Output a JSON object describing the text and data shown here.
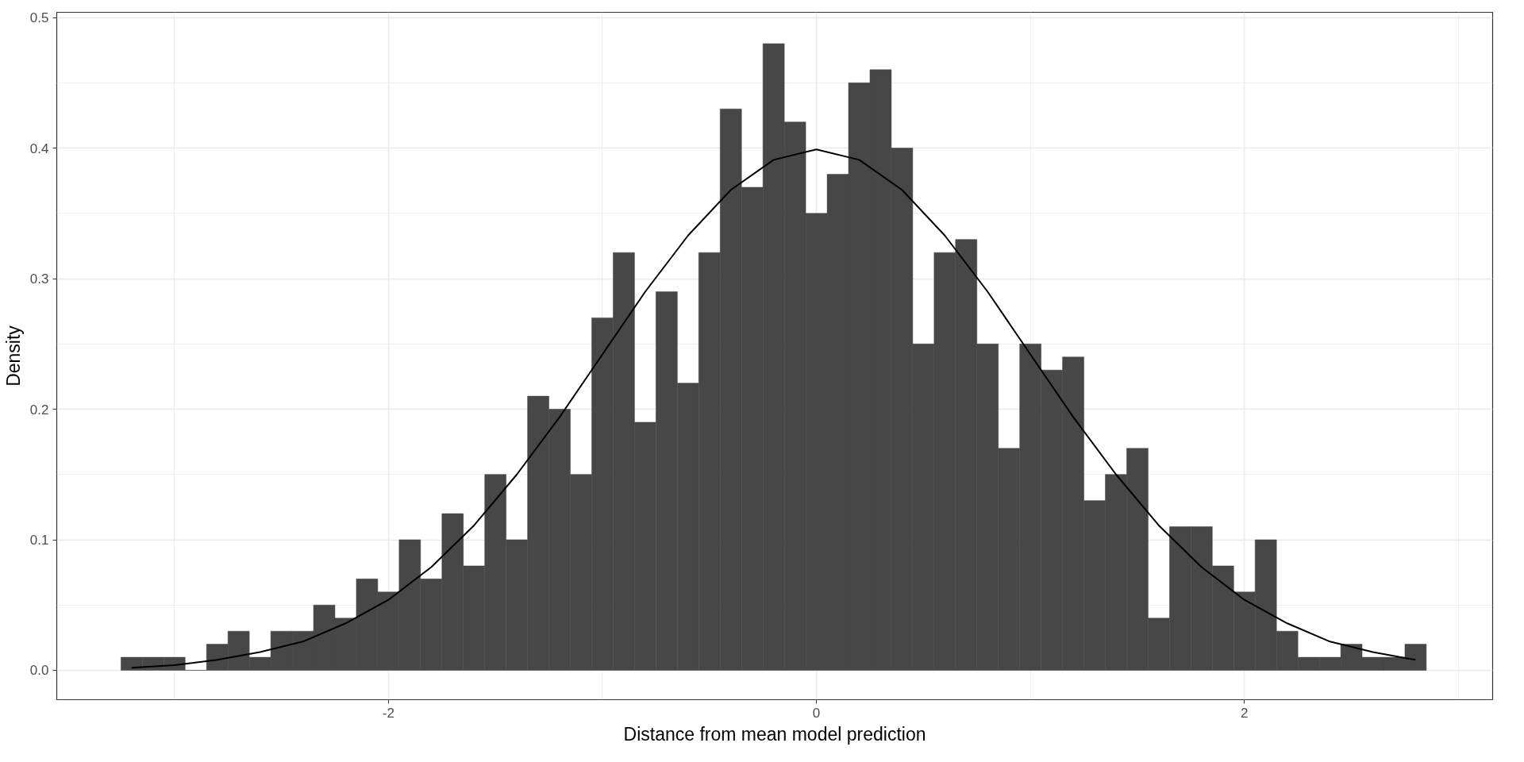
{
  "chart_data": {
    "type": "histogram",
    "xlabel": "Distance from mean model prediction",
    "ylabel": "Density",
    "color": "#474747",
    "bins": [
      -3.25,
      -3.15,
      -3.05,
      -2.95,
      -2.85,
      -2.75,
      -2.65,
      -2.55,
      -2.45,
      -2.35,
      -2.25,
      -2.15,
      -2.05,
      -1.95,
      -1.85,
      -1.75,
      -1.65,
      -1.55,
      -1.45,
      -1.35,
      -1.25,
      -1.15,
      -1.05,
      -0.95,
      -0.85,
      -0.75,
      -0.65,
      -0.55,
      -0.45,
      -0.35,
      -0.25,
      -0.15,
      -0.05,
      0.05,
      0.15,
      0.25,
      0.35,
      0.45,
      0.55,
      0.65,
      0.75,
      0.85,
      0.95,
      1.05,
      1.15,
      1.25,
      1.35,
      1.45,
      1.55,
      1.65,
      1.75,
      1.85,
      1.95,
      2.05,
      2.15,
      2.25,
      2.35,
      2.45,
      2.55,
      2.65,
      2.75,
      2.85
    ],
    "values": [
      0.01,
      0.01,
      0.01,
      0,
      0.02,
      0.03,
      0.01,
      0.03,
      0.03,
      0.05,
      0.04,
      0.07,
      0.06,
      0.1,
      0.07,
      0.12,
      0.08,
      0.15,
      0.1,
      0.21,
      0.2,
      0.15,
      0.27,
      0.32,
      0.19,
      0.29,
      0.22,
      0.32,
      0.43,
      0.37,
      0.48,
      0.42,
      0.35,
      0.38,
      0.45,
      0.46,
      0.4,
      0.25,
      0.32,
      0.33,
      0.25,
      0.17,
      0.25,
      0.23,
      0.24,
      0.13,
      0.15,
      0.17,
      0.04,
      0.11,
      0.11,
      0.08,
      0.06,
      0.1,
      0.03,
      0.01,
      0.01,
      0.02,
      0.01,
      0.01,
      0.02
    ],
    "series": [
      {
        "type": "line",
        "color": "#000000",
        "x": [
          -3.2,
          -3.0,
          -2.8,
          -2.6,
          -2.4,
          -2.2,
          -2.0,
          -1.8,
          -1.6,
          -1.4,
          -1.2,
          -1.0,
          -0.8,
          -0.6,
          -0.4,
          -0.2,
          0,
          0.2,
          0.4,
          0.6,
          0.8,
          1.0,
          1.2,
          1.4,
          1.6,
          1.8,
          2.0,
          2.2,
          2.4,
          2.6,
          2.8
        ],
        "values": [
          0.002,
          0.004,
          0.008,
          0.014,
          0.022,
          0.036,
          0.054,
          0.079,
          0.111,
          0.15,
          0.194,
          0.242,
          0.29,
          0.333,
          0.368,
          0.391,
          0.399,
          0.391,
          0.368,
          0.333,
          0.29,
          0.242,
          0.194,
          0.15,
          0.111,
          0.079,
          0.054,
          0.036,
          0.022,
          0.014,
          0.008
        ]
      }
    ],
    "xlim": [
      -3.55,
      3.16
    ],
    "xticks": [
      -2,
      0,
      2
    ],
    "ylim": [
      -0.0225,
      0.504
    ],
    "yticks": [
      {
        "value": 0,
        "label": "0.0"
      },
      0.1,
      0.2,
      0.3,
      0.4,
      0.5
    ],
    "grid": true
  }
}
